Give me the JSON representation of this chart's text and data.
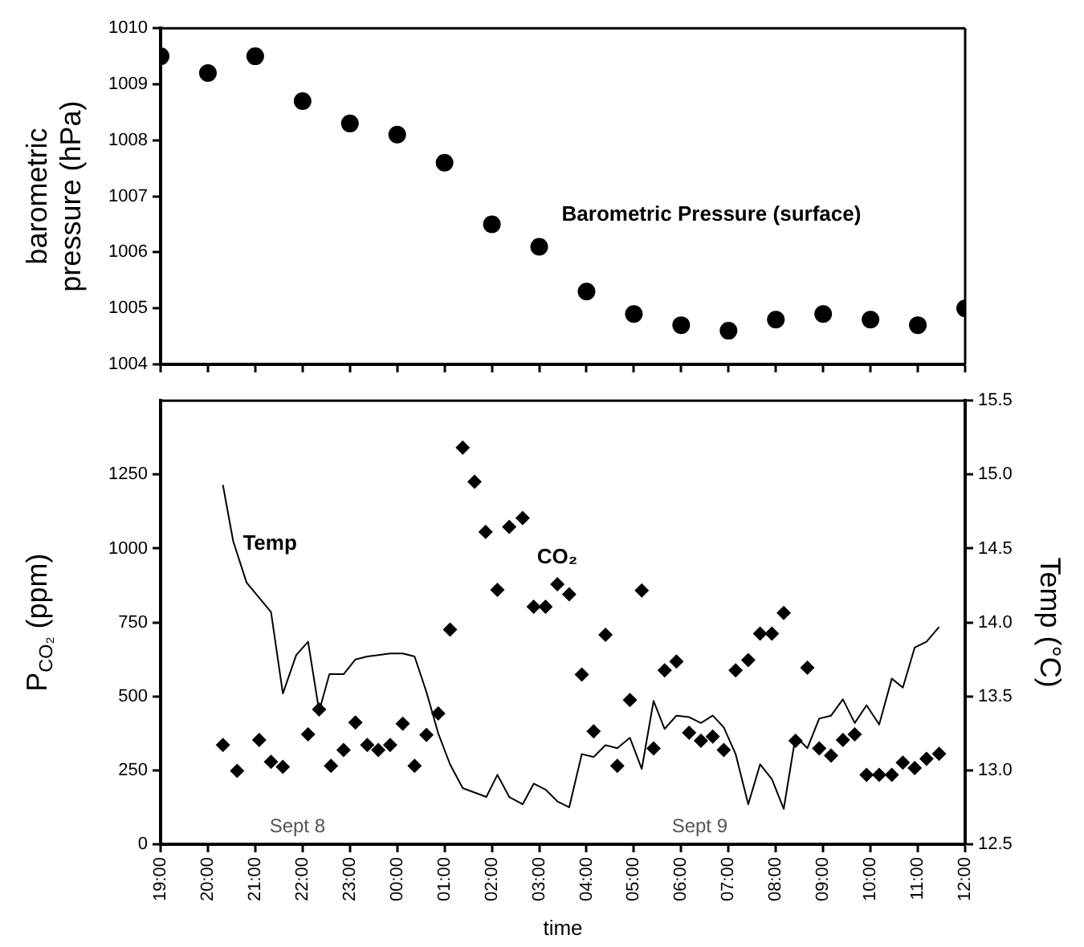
{
  "chart_data": [
    {
      "type": "scatter",
      "ylabel": "barometric pressure (hPa)",
      "marker": "circle",
      "tick_labels": "y",
      "xlim": [
        "--09-08T19:00",
        "--09-09T12:00"
      ],
      "xticks": [
        {
          "value": "--09-08T19:00",
          "label": "19:00"
        },
        {
          "value": "--09-08T20:00",
          "label": "20:00"
        },
        {
          "value": "--09-08T21:00",
          "label": "21:00"
        },
        {
          "value": "--09-08T22:00",
          "label": "22:00"
        },
        {
          "value": "--09-08T23:00",
          "label": "23:00"
        },
        {
          "value": "--09-09T00:00",
          "label": "00:00"
        },
        {
          "value": "--09-09T01:00",
          "label": "01:00"
        },
        {
          "value": "--09-09T02:00",
          "label": "02:00"
        },
        {
          "value": "--09-09T03:00",
          "label": "03:00"
        },
        {
          "value": "--09-09T04:00",
          "label": "04:00"
        },
        {
          "value": "--09-09T05:00",
          "label": "05:00"
        },
        {
          "value": "--09-09T06:00",
          "label": "06:00"
        },
        {
          "value": "--09-09T07:00",
          "label": "07:00"
        },
        {
          "value": "--09-09T08:00",
          "label": "08:00"
        },
        {
          "value": "--09-09T09:00",
          "label": "09:00"
        },
        {
          "value": "--09-09T10:00",
          "label": "10:00"
        },
        {
          "value": "--09-09T11:00",
          "label": "11:00"
        },
        {
          "value": "--09-09T12:00",
          "label": "12:00"
        }
      ],
      "ylim": [
        1004,
        1010
      ],
      "yticks": [
        1004,
        1005,
        1006,
        1007,
        1008,
        1009,
        1010
      ],
      "series": [
        {
          "name": "Barometric Pressure (surface)",
          "color": "#000000",
          "x": [
            "--09-08T19:00",
            "--09-08T20:00",
            "--09-08T21:00",
            "--09-08T22:00",
            "--09-08T23:00",
            "--09-09T00:00",
            "--09-09T01:00",
            "--09-09T02:00",
            "--09-09T03:00",
            "--09-09T04:00",
            "--09-09T05:00",
            "--09-09T06:00",
            "--09-09T07:00",
            "--09-09T08:00",
            "--09-09T09:00",
            "--09-09T10:00",
            "--09-09T11:00",
            "--09-09T12:00"
          ],
          "values": [
            1009.5,
            1009.2,
            1009.5,
            1008.7,
            1008.3,
            1008.1,
            1007.6,
            1006.5,
            1006.1,
            1005.3,
            1004.9,
            1004.7,
            1004.6,
            1004.8,
            1004.9,
            1004.8,
            1004.7,
            1005.0
          ]
        }
      ]
    },
    {
      "type": "scatter",
      "xlabel": "time",
      "ylabel": "P$_{CO₂}$ (ppm)",
      "y2label": "Temp (°C)",
      "xlim": [
        "--09-08T19:00",
        "--09-09T12:00"
      ],
      "xticks": [
        {
          "value": "--09-08T19:00",
          "label": "19:00"
        },
        {
          "value": "--09-08T20:00",
          "label": "20:00"
        },
        {
          "value": "--09-08T21:00",
          "label": "21:00"
        },
        {
          "value": "--09-08T22:00",
          "label": "22:00"
        },
        {
          "value": "--09-08T23:00",
          "label": "23:00"
        },
        {
          "value": "--09-09T00:00",
          "label": "00:00"
        },
        {
          "value": "--09-09T01:00",
          "label": "01:00"
        },
        {
          "value": "--09-09T02:00",
          "label": "02:00"
        },
        {
          "value": "--09-09T03:00",
          "label": "03:00"
        },
        {
          "value": "--09-09T04:00",
          "label": "04:00"
        },
        {
          "value": "--09-09T05:00",
          "label": "05:00"
        },
        {
          "value": "--09-09T06:00",
          "label": "06:00"
        },
        {
          "value": "--09-09T07:00",
          "label": "07:00"
        },
        {
          "value": "--09-09T08:00",
          "label": "08:00"
        },
        {
          "value": "--09-09T09:00",
          "label": "09:00"
        },
        {
          "value": "--09-09T10:00",
          "label": "10:00"
        },
        {
          "value": "--09-09T11:00",
          "label": "11:00"
        },
        {
          "value": "--09-09T12:00",
          "label": "12:00"
        }
      ],
      "ylim": [
        0,
        1500
      ],
      "yticks": [
        0,
        250,
        500,
        750,
        1000,
        1250
      ],
      "y2lim": [
        12.5,
        15.5
      ],
      "y2ticks": [
        12.5,
        {
          "value": 13,
          "label": "13.0"
        },
        13.5,
        {
          "value": 14,
          "label": "14.0"
        },
        14.5,
        {
          "value": 15,
          "label": "15.0"
        },
        15.5
      ],
      "series": [
        {
          "name": "CO₂",
          "marker": "diamond",
          "color": "#000000",
          "x": [
            "--09-08T20:19",
            "--09-08T20:37",
            "--09-08T21:05",
            "--09-08T21:20",
            "--09-08T21:35",
            "--09-08T22:07",
            "--09-08T22:21",
            "--09-08T22:36",
            "--09-08T22:52",
            "--09-08T23:07",
            "--09-08T23:22",
            "--09-08T23:36",
            "--09-08T23:51",
            "--09-09T00:07",
            "--09-09T00:22",
            "--09-09T00:37",
            "--09-09T00:52",
            "--09-09T01:07",
            "--09-09T01:23",
            "--09-09T01:38",
            "--09-09T01:52",
            "--09-09T02:07",
            "--09-09T02:22",
            "--09-09T02:39",
            "--09-09T02:53",
            "--09-09T03:08",
            "--09-09T03:23",
            "--09-09T03:38",
            "--09-09T03:54",
            "--09-09T04:09",
            "--09-09T04:24",
            "--09-09T04:39",
            "--09-09T04:55",
            "--09-09T05:10",
            "--09-09T05:25",
            "--09-09T05:39",
            "--09-09T05:54",
            "--09-09T06:10",
            "--09-09T06:25",
            "--09-09T06:40",
            "--09-09T06:54",
            "--09-09T07:09",
            "--09-09T07:25",
            "--09-09T07:40",
            "--09-09T07:55",
            "--09-09T08:10",
            "--09-09T08:25",
            "--09-09T08:40",
            "--09-09T08:55",
            "--09-09T09:10",
            "--09-09T09:25",
            "--09-09T09:40",
            "--09-09T09:55",
            "--09-09T10:11",
            "--09-09T10:27",
            "--09-09T10:41",
            "--09-09T10:56",
            "--09-09T11:11",
            "--09-09T11:27"
          ],
          "values": [
            336,
            248,
            353,
            279,
            262,
            372,
            456,
            265,
            319,
            412,
            336,
            319,
            336,
            408,
            265,
            370,
            442,
            726,
            1341,
            1226,
            1056,
            860,
            1073,
            1103,
            803,
            803,
            879,
            845,
            574,
            382,
            708,
            265,
            488,
            858,
            324,
            588,
            618,
            377,
            350,
            364,
            319,
            588,
            623,
            712,
            712,
            782,
            350,
            597,
            324,
            300,
            353,
            372,
            235,
            235,
            235,
            276,
            258,
            289,
            306
          ]
        },
        {
          "name": "Temp",
          "type": "line",
          "axis": "y2",
          "marker": "none",
          "color": "#000000",
          "x": [
            "--09-08T20:19",
            "--09-08T20:32",
            "--09-08T20:49",
            "--09-08T21:20",
            "--09-08T21:35",
            "--09-08T21:52",
            "--09-08T22:07",
            "--09-08T22:21",
            "--09-08T22:34",
            "--09-08T22:52",
            "--09-08T23:07",
            "--09-08T23:22",
            "--09-08T23:36",
            "--09-08T23:51",
            "--09-09T00:07",
            "--09-09T00:22",
            "--09-09T00:37",
            "--09-09T00:52",
            "--09-09T01:07",
            "--09-09T01:23",
            "--09-09T01:38",
            "--09-09T01:53",
            "--09-09T02:07",
            "--09-09T02:22",
            "--09-09T02:39",
            "--09-09T02:53",
            "--09-09T03:08",
            "--09-09T03:23",
            "--09-09T03:38",
            "--09-09T03:54",
            "--09-09T04:09",
            "--09-09T04:24",
            "--09-09T04:39",
            "--09-09T04:55",
            "--09-09T05:10",
            "--09-09T05:25",
            "--09-09T05:39",
            "--09-09T05:54",
            "--09-09T06:10",
            "--09-09T06:25",
            "--09-09T06:40",
            "--09-09T06:54",
            "--09-09T07:09",
            "--09-09T07:25",
            "--09-09T07:40",
            "--09-09T07:55",
            "--09-09T08:10",
            "--09-09T08:25",
            "--09-09T08:40",
            "--09-09T08:55",
            "--09-09T09:10",
            "--09-09T09:25",
            "--09-09T09:40",
            "--09-09T09:55",
            "--09-09T10:11",
            "--09-09T10:27",
            "--09-09T10:41",
            "--09-09T10:56",
            "--09-09T11:11",
            "--09-09T11:27"
          ],
          "values": [
            14.93,
            14.55,
            14.27,
            14.07,
            13.52,
            13.78,
            13.87,
            13.4,
            13.65,
            13.65,
            13.75,
            13.77,
            13.78,
            13.79,
            13.79,
            13.77,
            13.53,
            13.25,
            13.04,
            12.88,
            12.85,
            12.82,
            12.97,
            12.82,
            12.77,
            12.91,
            12.87,
            12.79,
            12.75,
            13.11,
            13.09,
            13.17,
            13.15,
            13.22,
            13.01,
            13.47,
            13.28,
            13.37,
            13.36,
            13.32,
            13.37,
            13.29,
            13.11,
            12.77,
            13.04,
            12.94,
            12.74,
            13.23,
            13.15,
            13.35,
            13.37,
            13.48,
            13.32,
            13.44,
            13.31,
            13.62,
            13.56,
            13.83,
            13.87,
            13.97
          ]
        }
      ],
      "annotations": [
        "Sept 8",
        "Sept 9"
      ]
    }
  ]
}
